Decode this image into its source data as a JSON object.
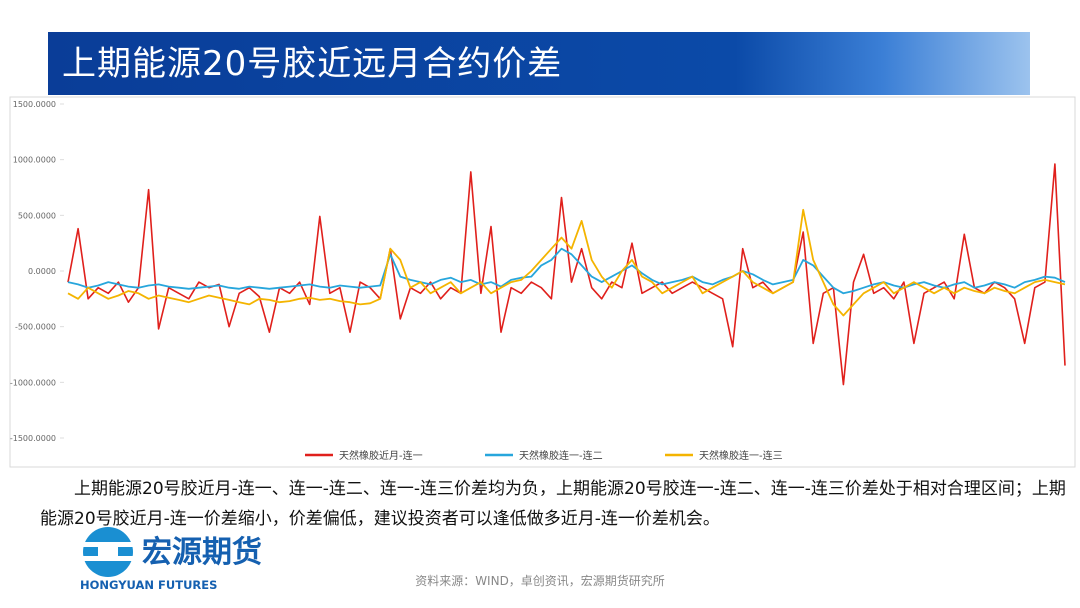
{
  "header": {
    "title": "上期能源20号胶近远月合约价差"
  },
  "chart_data": {
    "type": "line",
    "categories": [
      null,
      null,
      null,
      null,
      null,
      null,
      null,
      null,
      null,
      null,
      null,
      null,
      null,
      null,
      null,
      null,
      null,
      null,
      null,
      null,
      null,
      null,
      null,
      null,
      null,
      null,
      null,
      null,
      null,
      null,
      null,
      null,
      null,
      null,
      null,
      null,
      null,
      null,
      null,
      null,
      null,
      null,
      null,
      null,
      null,
      null,
      null,
      null,
      null,
      null,
      null,
      null,
      null,
      null,
      null,
      null,
      null,
      null,
      null,
      null,
      null,
      null,
      null,
      null,
      null,
      null,
      null,
      null,
      null,
      null,
      null,
      null,
      null,
      null,
      null,
      null,
      null,
      null,
      null,
      null,
      null,
      null,
      null,
      null,
      null,
      null,
      null,
      null,
      null,
      null,
      null,
      null,
      null,
      null,
      null,
      null,
      null,
      null,
      null,
      null
    ],
    "ylim": [
      -1500,
      1500
    ],
    "yticks": [
      {
        "value": 1500,
        "label": "1500.0000"
      },
      {
        "value": 1000,
        "label": "1000.0000"
      },
      {
        "value": 500,
        "label": "500.0000"
      },
      {
        "value": 0,
        "label": "0.0000"
      },
      {
        "value": -500,
        "label": "-500.0000"
      },
      {
        "value": -1000,
        "label": "-1000.0000"
      },
      {
        "value": -1500,
        "label": "-1500.0000"
      }
    ],
    "series": [
      {
        "name": "天然橡胶近月-连一",
        "color": "#e0201c",
        "values": [
          -100,
          380,
          -250,
          -150,
          -200,
          -100,
          -280,
          -150,
          730,
          -520,
          -150,
          -200,
          -250,
          -100,
          -150,
          -120,
          -500,
          -200,
          -150,
          -230,
          -550,
          -150,
          -200,
          -100,
          -300,
          490,
          -200,
          -150,
          -550,
          -100,
          -150,
          -250,
          200,
          -430,
          -150,
          -200,
          -100,
          -250,
          -150,
          -200,
          890,
          -200,
          400,
          -550,
          -150,
          -200,
          -100,
          -150,
          -250,
          660,
          -100,
          200,
          -150,
          -250,
          -100,
          -150,
          250,
          -200,
          -150,
          -100,
          -200,
          -150,
          -100,
          -150,
          -200,
          -250,
          -680,
          200,
          -150,
          -100,
          -200,
          -150,
          -100,
          350,
          -650,
          -200,
          -150,
          -1020,
          -100,
          150,
          -200,
          -150,
          -250,
          -100,
          -650,
          -200,
          -150,
          -100,
          -250,
          330,
          -150,
          -200,
          -100,
          -150,
          -250,
          -650,
          -150,
          -100,
          960,
          -850
        ]
      },
      {
        "name": "天然橡胶连一-连二",
        "color": "#27a6dc",
        "values": [
          -100,
          -120,
          -150,
          -130,
          -100,
          -120,
          -140,
          -150,
          -130,
          -120,
          -140,
          -150,
          -160,
          -150,
          -140,
          -130,
          -150,
          -160,
          -140,
          -150,
          -160,
          -150,
          -140,
          -130,
          -120,
          -140,
          -150,
          -130,
          -140,
          -150,
          -140,
          -130,
          150,
          -50,
          -80,
          -100,
          -120,
          -80,
          -60,
          -100,
          -80,
          -120,
          -100,
          -140,
          -80,
          -60,
          -50,
          50,
          100,
          200,
          150,
          50,
          -50,
          -100,
          -50,
          0,
          50,
          -20,
          -80,
          -120,
          -100,
          -80,
          -50,
          -100,
          -120,
          -80,
          -50,
          0,
          -30,
          -80,
          -120,
          -100,
          -80,
          100,
          50,
          -50,
          -150,
          -200,
          -180,
          -150,
          -120,
          -100,
          -130,
          -150,
          -120,
          -100,
          -130,
          -150,
          -120,
          -100,
          -150,
          -130,
          -100,
          -120,
          -150,
          -100,
          -80,
          -50,
          -60,
          -100
        ]
      },
      {
        "name": "天然橡胶连一-连三",
        "color": "#f4b400",
        "values": [
          -200,
          -250,
          -150,
          -200,
          -250,
          -220,
          -180,
          -200,
          -250,
          -220,
          -240,
          -260,
          -280,
          -250,
          -220,
          -240,
          -260,
          -280,
          -300,
          -250,
          -260,
          -280,
          -270,
          -250,
          -240,
          -260,
          -250,
          -270,
          -280,
          -300,
          -290,
          -250,
          200,
          100,
          -150,
          -100,
          -200,
          -150,
          -100,
          -200,
          -150,
          -100,
          -200,
          -150,
          -100,
          -80,
          0,
          100,
          200,
          300,
          200,
          450,
          100,
          -50,
          -150,
          0,
          100,
          -50,
          -100,
          -200,
          -150,
          -100,
          -50,
          -200,
          -150,
          -100,
          -50,
          0,
          -100,
          -150,
          -200,
          -150,
          -100,
          550,
          100,
          -100,
          -300,
          -400,
          -300,
          -200,
          -150,
          -100,
          -200,
          -150,
          -100,
          -150,
          -200,
          -150,
          -200,
          -150,
          -180,
          -200,
          -150,
          -180,
          -200,
          -150,
          -100,
          -80,
          -100,
          -120
        ]
      }
    ]
  },
  "body": {
    "paragraph": "上期能源20号胶近月-连一、连一-连二、连一-连三价差均为负，上期能源20号胶连一-连二、连一-连三价差处于相对合理区间；上期能源20号胶近月-连一价差缩小，价差偏低，建议投资者可以逢低做多近月-连一价差机会。"
  },
  "logo": {
    "cn": "宏源期货",
    "en": "HONGYUAN FUTURES"
  },
  "source": "资料来源：WIND，卓创资讯，宏源期货研究所"
}
